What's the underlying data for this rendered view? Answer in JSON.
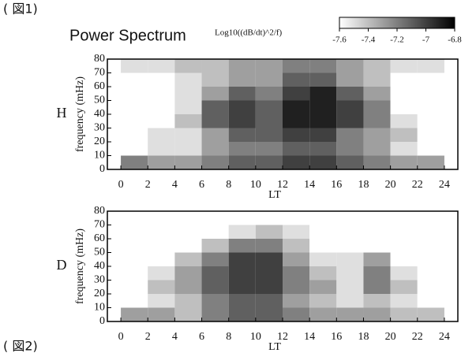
{
  "header": {
    "figure_label": "( 図1)"
  },
  "footer": {
    "figure_label": "( 図2)"
  },
  "chart_data": [
    {
      "type": "heatmap",
      "title": "Power Spectrum",
      "panel_label": "H",
      "xlabel": "LT",
      "ylabel": "frequency (mHz)",
      "colorbar": {
        "label": "Log10((dB/dt)^2/f)",
        "zlim": [
          -7.6,
          -6.8
        ],
        "ticks": [
          -7.6,
          -7.4,
          -7.2,
          -7,
          -6.8
        ]
      },
      "xlim": [
        -1,
        25
      ],
      "ylim": [
        0,
        80
      ],
      "xticks": [
        0,
        2,
        4,
        6,
        8,
        10,
        12,
        14,
        16,
        18,
        20,
        22,
        24
      ],
      "yticks": [
        0,
        10,
        20,
        30,
        40,
        50,
        60,
        70,
        80
      ],
      "x_bins": [
        0,
        2,
        4,
        6,
        8,
        10,
        12,
        14,
        16,
        18,
        20,
        22,
        24
      ],
      "y_bins": [
        0,
        10,
        20,
        30,
        40,
        50,
        60,
        70,
        80
      ],
      "z": [
        [
          -7.2,
          -7.3,
          -7.3,
          -7.2,
          -7.1,
          -7.1,
          -7.0,
          -7.0,
          -7.1,
          -7.2,
          -7.3,
          -7.3
        ],
        [
          -7.6,
          -7.5,
          -7.5,
          -7.3,
          -7.2,
          -7.2,
          -7.1,
          -7.1,
          -7.2,
          -7.3,
          -7.5,
          -7.6
        ],
        [
          -7.6,
          -7.5,
          -7.5,
          -7.3,
          -7.1,
          -7.1,
          -7.0,
          -7.0,
          -7.2,
          -7.3,
          -7.4,
          -7.6
        ],
        [
          -7.6,
          -7.6,
          -7.4,
          -7.1,
          -7.0,
          -7.1,
          -6.9,
          -6.9,
          -7.0,
          -7.2,
          -7.5,
          -7.6
        ],
        [
          -7.7,
          -7.6,
          -7.5,
          -7.1,
          -7.0,
          -7.1,
          -6.9,
          -6.9,
          -7.0,
          -7.2,
          -7.6,
          -7.7
        ],
        [
          -7.7,
          -7.6,
          -7.5,
          -7.3,
          -7.1,
          -7.2,
          -7.0,
          -6.9,
          -7.1,
          -7.3,
          -7.6,
          -7.7
        ],
        [
          -7.6,
          -7.6,
          -7.5,
          -7.4,
          -7.3,
          -7.3,
          -7.1,
          -7.1,
          -7.3,
          -7.4,
          -7.6,
          -7.6
        ],
        [
          -7.5,
          -7.5,
          -7.4,
          -7.4,
          -7.3,
          -7.3,
          -7.2,
          -7.2,
          -7.3,
          -7.4,
          -7.5,
          -7.5
        ]
      ]
    },
    {
      "type": "heatmap",
      "panel_label": "D",
      "xlabel": "LT",
      "ylabel": "frequency (mHz)",
      "xlim": [
        -1,
        25
      ],
      "ylim": [
        0,
        80
      ],
      "xticks": [
        0,
        2,
        4,
        6,
        8,
        10,
        12,
        14,
        16,
        18,
        20,
        22,
        24
      ],
      "yticks": [
        0,
        10,
        20,
        30,
        40,
        50,
        60,
        70,
        80
      ],
      "x_bins": [
        0,
        2,
        4,
        6,
        8,
        10,
        12,
        14,
        16,
        18,
        20,
        22,
        24
      ],
      "y_bins": [
        0,
        10,
        20,
        30,
        40,
        50,
        60,
        70,
        80
      ],
      "z": [
        [
          -7.3,
          -7.3,
          -7.4,
          -7.2,
          -7.1,
          -7.1,
          -7.2,
          -7.3,
          -7.3,
          -7.3,
          -7.4,
          -7.4
        ],
        [
          -7.7,
          -7.5,
          -7.4,
          -7.2,
          -7.1,
          -7.1,
          -7.3,
          -7.4,
          -7.5,
          -7.4,
          -7.5,
          -7.7
        ],
        [
          -7.7,
          -7.4,
          -7.3,
          -7.1,
          -7.0,
          -7.0,
          -7.2,
          -7.3,
          -7.5,
          -7.2,
          -7.4,
          -7.7
        ],
        [
          -7.7,
          -7.5,
          -7.3,
          -7.1,
          -7.0,
          -7.0,
          -7.2,
          -7.4,
          -7.5,
          -7.2,
          -7.5,
          -7.7
        ],
        [
          -7.8,
          -7.6,
          -7.4,
          -7.2,
          -7.0,
          -7.0,
          -7.3,
          -7.5,
          -7.5,
          -7.3,
          -7.6,
          -7.8
        ],
        [
          -7.8,
          -7.7,
          -7.6,
          -7.4,
          -7.2,
          -7.2,
          -7.4,
          -7.6,
          -7.7,
          -7.6,
          -7.7,
          -7.8
        ],
        [
          -7.8,
          -7.8,
          -7.7,
          -7.6,
          -7.5,
          -7.4,
          -7.5,
          -7.7,
          -7.8,
          -7.8,
          -7.8,
          -7.8
        ],
        [
          -7.7,
          -7.8,
          -7.8,
          -7.7,
          -7.6,
          -7.6,
          -7.6,
          -7.8,
          -7.8,
          -7.8,
          -7.8,
          -7.8
        ]
      ]
    }
  ]
}
